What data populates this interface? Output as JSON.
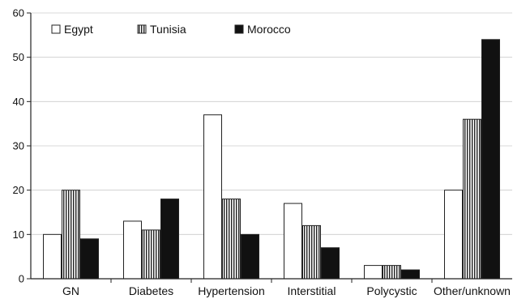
{
  "chart_data": {
    "type": "bar",
    "categories": [
      "GN",
      "Diabetes",
      "Hypertension",
      "Interstitial",
      "Polycystic",
      "Other/unknown"
    ],
    "series": [
      {
        "name": "Egypt",
        "values": [
          10,
          13,
          37,
          17,
          3,
          20
        ],
        "fill": "white"
      },
      {
        "name": "Tunisia",
        "values": [
          20,
          11,
          18,
          12,
          3,
          36
        ],
        "fill": "stripes"
      },
      {
        "name": "Morocco",
        "values": [
          9,
          18,
          10,
          7,
          2,
          54
        ],
        "fill": "black"
      }
    ],
    "ylim": [
      0,
      60
    ],
    "yticks": [
      0,
      10,
      20,
      30,
      40,
      50,
      60
    ],
    "grid": true,
    "legend": "top-left",
    "colors": {
      "bar_outline": "#222222",
      "grid": "#cccccc",
      "black_fill": "#111111"
    }
  }
}
